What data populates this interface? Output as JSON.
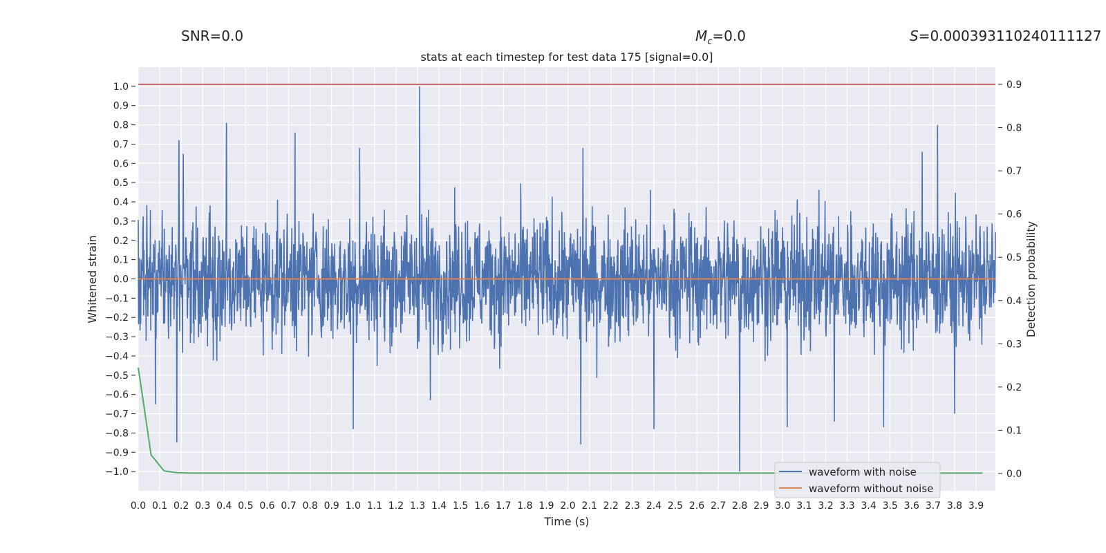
{
  "header": {
    "snr": "SNR=0.0",
    "mc_symbol": "M",
    "mc_sub": "c",
    "mc_value": "=0.0",
    "s_symbol": "S",
    "s_value": "=0.000393110240111127"
  },
  "chart_data": {
    "type": "line",
    "title": "stats at each timestep for test data 175 [signal=0.0]",
    "xlabel": "Time (s)",
    "ylabel": "Whitened strain",
    "y2label": "Detection probability",
    "xlim": [
      0.0,
      3.99
    ],
    "ylim": [
      -1.1,
      1.1
    ],
    "y2lim": [
      -0.04,
      0.94
    ],
    "x_ticks": [
      "0.0",
      "0.1",
      "0.2",
      "0.3",
      "0.4",
      "0.5",
      "0.6",
      "0.7",
      "0.8",
      "0.9",
      "1.0",
      "1.1",
      "1.2",
      "1.3",
      "1.4",
      "1.5",
      "1.6",
      "1.7",
      "1.8",
      "1.9",
      "2.0",
      "2.1",
      "2.2",
      "2.3",
      "2.4",
      "2.5",
      "2.6",
      "2.7",
      "2.8",
      "2.9",
      "3.0",
      "3.1",
      "3.2",
      "3.3",
      "3.4",
      "3.5",
      "3.6",
      "3.7",
      "3.8",
      "3.9"
    ],
    "y_ticks": [
      "1.0",
      "0.9",
      "0.8",
      "0.7",
      "0.6",
      "0.5",
      "0.4",
      "0.3",
      "0.2",
      "0.1",
      "0.0",
      "−0.1",
      "−0.2",
      "−0.3",
      "−0.4",
      "−0.5",
      "−0.6",
      "−0.7",
      "−0.8",
      "−0.9",
      "−1.0"
    ],
    "y2_ticks": [
      "0.9",
      "0.8",
      "0.7",
      "0.6",
      "0.5",
      "0.4",
      "0.3",
      "0.2",
      "0.1",
      "0.0"
    ],
    "threshold": {
      "value": 0.9,
      "axis": "y2",
      "color": "#c44e52"
    },
    "series": [
      {
        "name": "waveform with noise",
        "color": "#4c72b0",
        "axis": "y",
        "description": "dense whitened noise, mostly within ±0.35 with sporadic spikes",
        "noise_amplitude": 0.3,
        "peaks": [
          {
            "x": 0.19,
            "y": 0.72
          },
          {
            "x": 0.21,
            "y": 0.65
          },
          {
            "x": 0.41,
            "y": 0.81
          },
          {
            "x": 0.73,
            "y": 0.76
          },
          {
            "x": 1.03,
            "y": 0.68
          },
          {
            "x": 1.31,
            "y": 1.0
          },
          {
            "x": 2.07,
            "y": 0.68
          },
          {
            "x": 3.72,
            "y": 0.8
          },
          {
            "x": 3.65,
            "y": 0.66
          }
        ],
        "troughs": [
          {
            "x": 0.18,
            "y": -0.85
          },
          {
            "x": 0.08,
            "y": -0.65
          },
          {
            "x": 1.0,
            "y": -0.78
          },
          {
            "x": 2.06,
            "y": -0.86
          },
          {
            "x": 2.4,
            "y": -0.78
          },
          {
            "x": 2.8,
            "y": -1.0
          },
          {
            "x": 3.02,
            "y": -0.77
          },
          {
            "x": 3.24,
            "y": -0.74
          },
          {
            "x": 3.47,
            "y": -0.77
          },
          {
            "x": 3.8,
            "y": -0.7
          },
          {
            "x": 1.36,
            "y": -0.63
          }
        ]
      },
      {
        "name": "waveform without noise",
        "color": "#dd8452",
        "axis": "y",
        "x": [
          0.0,
          3.99
        ],
        "y": [
          0.0,
          0.0
        ]
      },
      {
        "name": "detection probability",
        "color": "#55a868",
        "axis": "y2",
        "x": [
          0.0,
          0.06,
          0.12,
          0.18,
          0.24,
          0.3,
          0.5,
          1.0,
          2.0,
          3.0,
          3.93
        ],
        "y": [
          0.245,
          0.043,
          0.006,
          0.002,
          0.001,
          0.001,
          0.001,
          0.001,
          0.001,
          0.001,
          0.001
        ]
      }
    ],
    "legend": {
      "position": "bottom-right",
      "entries": [
        {
          "label": "waveform with noise",
          "color": "#4c72b0"
        },
        {
          "label": "waveform without noise",
          "color": "#dd8452"
        }
      ]
    }
  }
}
